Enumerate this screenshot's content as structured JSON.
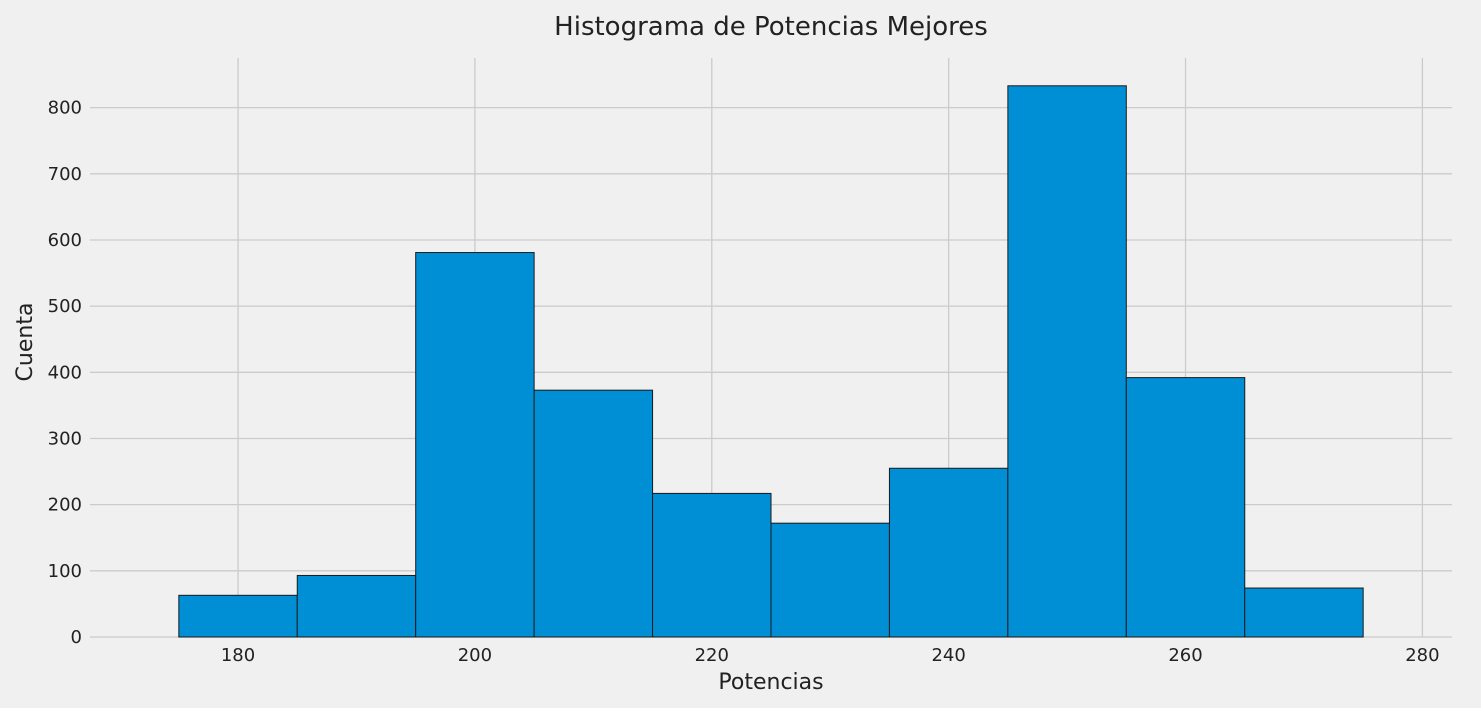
{
  "chart_data": {
    "type": "bar",
    "title": "Histograma de Potencias Mejores",
    "xlabel": "Potencias",
    "ylabel": "Cuenta",
    "xlim": [
      167.5,
      282.5
    ],
    "ylim": [
      0,
      875
    ],
    "xticks": [
      180,
      200,
      220,
      240,
      260,
      280
    ],
    "yticks": [
      0,
      100,
      200,
      300,
      400,
      500,
      600,
      700,
      800
    ],
    "grid": true,
    "bin_edges": [
      175,
      185,
      195,
      205,
      215,
      225,
      235,
      245,
      255,
      265,
      275
    ],
    "values": [
      63,
      93,
      581,
      373,
      217,
      172,
      255,
      833,
      392,
      74
    ],
    "colors": {
      "bar_fill": "#008fd5",
      "bar_edge": "#1a1a1a",
      "background": "#f0f0f0",
      "grid": "#cbcbcb",
      "text": "#222222"
    }
  }
}
